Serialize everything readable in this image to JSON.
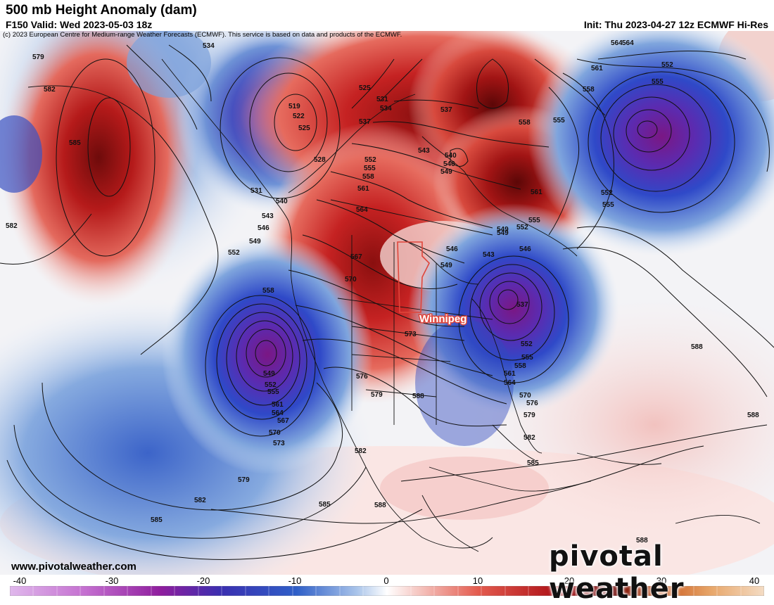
{
  "header": {
    "title": "500 mb Height Anomaly (dam)",
    "valid": "F150 Valid: Wed 2023-05-03 18z",
    "init": "Init: Thu 2023-04-27 12z ECMWF Hi-Res",
    "copyright": "(c) 2023 European Centre for Medium-range Weather Forecasts (ECMWF). This service is based on data and products of the ECMWF."
  },
  "map": {
    "city_label": "Winnipeg",
    "contour_labels": [
      "579",
      "582",
      "585",
      "534",
      "519",
      "522",
      "525",
      "528",
      "525",
      "531",
      "531",
      "534",
      "537",
      "540",
      "543",
      "546",
      "549",
      "552",
      "558",
      "552",
      "555",
      "558",
      "561",
      "564",
      "567",
      "570",
      "573",
      "576",
      "579",
      "582",
      "549",
      "552",
      "555",
      "561",
      "564",
      "567",
      "570",
      "573",
      "579",
      "582",
      "585",
      "537",
      "537",
      "540",
      "543",
      "546",
      "549",
      "549",
      "552",
      "555",
      "558",
      "561",
      "564",
      "543",
      "546",
      "549",
      "552",
      "555",
      "558",
      "561",
      "564",
      "570",
      "576",
      "579",
      "582",
      "585",
      "588",
      "588",
      "588",
      "588",
      "546",
      "549",
      "552",
      "555",
      "552",
      "555",
      "564",
      "561",
      "558",
      "555",
      "588",
      "585",
      "582"
    ],
    "colors": {
      "negative_extreme": "#8b1a9c",
      "negative": "#2c3fb8",
      "positive": "#c81e1e",
      "positive_extreme": "#7a0a0a",
      "outline": "#e0463b"
    }
  },
  "colorbar": {
    "ticks": [
      "-40",
      "-30",
      "-20",
      "-10",
      "0",
      "10",
      "20",
      "30",
      "40"
    ],
    "min": -40,
    "max": 40
  },
  "footer": {
    "website": "www.pivotalweather.com",
    "brand": "pivotal weather"
  }
}
